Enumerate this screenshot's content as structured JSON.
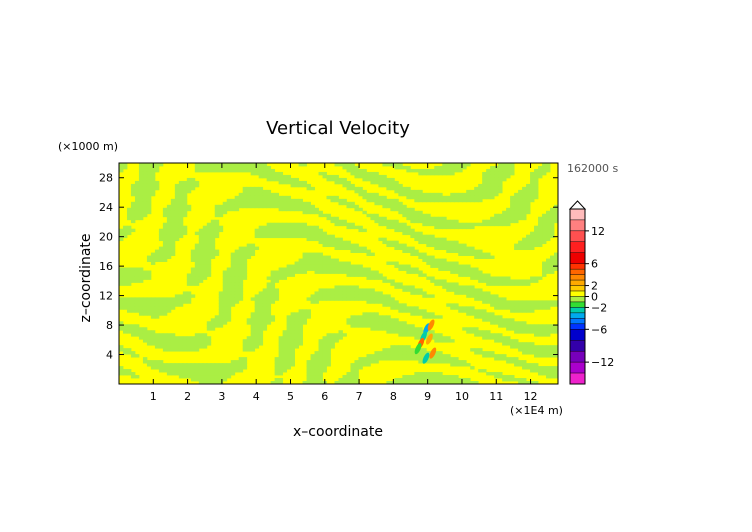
{
  "chart_data": {
    "type": "heatmap",
    "title": "Vertical Velocity",
    "xlabel": "x–coordinate",
    "ylabel": "z–coordinate",
    "x_unit_label": "(×1E4 m)",
    "y_unit_label": "(×1000 m)",
    "time_label": "162000 s",
    "xlim": [
      0,
      12.8
    ],
    "ylim": [
      0,
      30
    ],
    "x_ticks": [
      1,
      2,
      3,
      4,
      5,
      6,
      7,
      8,
      9,
      10,
      11,
      12
    ],
    "y_ticks": [
      4,
      8,
      12,
      16,
      20,
      24,
      28
    ],
    "dominant_colors": {
      "positive_small": "#ffff00",
      "negative_small": "#aaee44"
    },
    "colorbar": {
      "tick_labels": [
        "12",
        "6",
        "2",
        "0",
        "−2",
        "−6",
        "−12"
      ],
      "tick_values": [
        12,
        6,
        2,
        0,
        -2,
        -6,
        -12
      ],
      "bands": [
        {
          "from": 14,
          "to": 16,
          "color": "#ffbbbb"
        },
        {
          "from": 12,
          "to": 14,
          "color": "#ff8080"
        },
        {
          "from": 10,
          "to": 12,
          "color": "#ff5050"
        },
        {
          "from": 8,
          "to": 10,
          "color": "#ff2020"
        },
        {
          "from": 6,
          "to": 8,
          "color": "#ee0000"
        },
        {
          "from": 5,
          "to": 6,
          "color": "#ff3300"
        },
        {
          "from": 4,
          "to": 5,
          "color": "#ff6600"
        },
        {
          "from": 3,
          "to": 4,
          "color": "#ff8800"
        },
        {
          "from": 2,
          "to": 3,
          "color": "#ffaa00"
        },
        {
          "from": 1,
          "to": 2,
          "color": "#ffcc00"
        },
        {
          "from": 0,
          "to": 1,
          "color": "#ffff00"
        },
        {
          "from": -1,
          "to": 0,
          "color": "#aaee44"
        },
        {
          "from": -2,
          "to": -1,
          "color": "#33dd33"
        },
        {
          "from": -3,
          "to": -2,
          "color": "#00ccaa"
        },
        {
          "from": -4,
          "to": -3,
          "color": "#00aaee"
        },
        {
          "from": -5,
          "to": -4,
          "color": "#0077ff"
        },
        {
          "from": -6,
          "to": -5,
          "color": "#0033ff"
        },
        {
          "from": -8,
          "to": -6,
          "color": "#0000cc"
        },
        {
          "from": -10,
          "to": -8,
          "color": "#3300aa"
        },
        {
          "from": -12,
          "to": -10,
          "color": "#7700bb"
        },
        {
          "from": -14,
          "to": -12,
          "color": "#aa00cc"
        },
        {
          "from": -16,
          "to": -14,
          "color": "#ee22cc"
        }
      ]
    }
  }
}
